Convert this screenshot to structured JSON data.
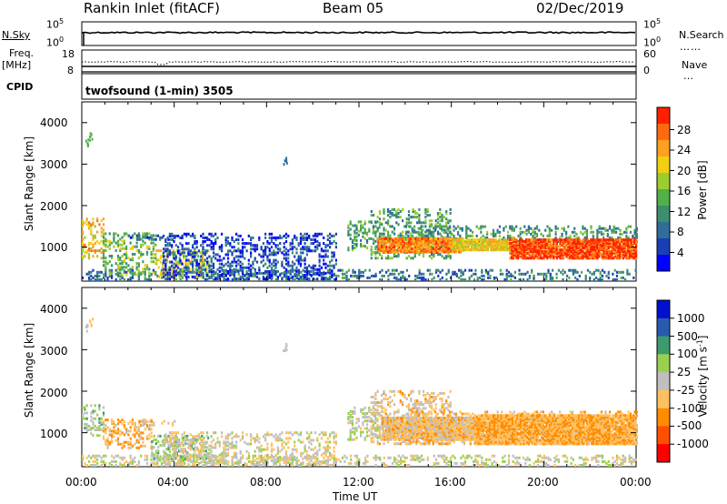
{
  "header": {
    "station": "Rankin Inlet (fitACF)",
    "beam": "Beam 05",
    "date": "02/Dec/2019"
  },
  "params": {
    "nsky_label": "N.Sky",
    "nsearch_label": "N.Search",
    "freq_label_1": "Freq.",
    "freq_label_2": "[MHz]",
    "nave_label": "Nave",
    "cpid_label": "CPID",
    "cpid_value": "twofsound (1-min) 3505",
    "nsky_ticks": [
      "10^5",
      "10^0"
    ],
    "nsearch_ticks": [
      "10^5",
      "10^0"
    ],
    "freq_ticks": [
      "18",
      "8"
    ],
    "nave_ticks": [
      "60",
      "0"
    ]
  },
  "chart_data": [
    {
      "type": "heatmap",
      "name": "power",
      "xlabel": "Time UT",
      "ylabel": "Slant Range [km]",
      "xlim": [
        0,
        24
      ],
      "ylim": [
        180,
        4500
      ],
      "yticks": [
        "4000",
        "3000",
        "2000",
        "1000"
      ],
      "colorbar": {
        "label": "Power [dB]",
        "ticks": [
          "28",
          "24",
          "20",
          "16",
          "12",
          "8",
          "4"
        ],
        "range": [
          0,
          30
        ],
        "colors": [
          "#0000ff",
          "#1a3fb4",
          "#2f6e98",
          "#3d8e6e",
          "#52b04a",
          "#9ccc2e",
          "#f0d010",
          "#ffa020",
          "#ff6a10",
          "#ff2000"
        ]
      },
      "scatter_regions": [
        {
          "t": [
            0.0,
            0.9
          ],
          "r": [
            700,
            1650
          ],
          "db": 20
        },
        {
          "t": [
            0.0,
            24.0
          ],
          "r": [
            180,
            420
          ],
          "db": 8
        },
        {
          "t": [
            0.9,
            3.2
          ],
          "r": [
            300,
            1300
          ],
          "db": 14
        },
        {
          "t": [
            3.2,
            5.5
          ],
          "r": [
            250,
            900
          ],
          "db": 18
        },
        {
          "t": [
            2.0,
            4.0
          ],
          "r": [
            1150,
            1250
          ],
          "db": 6
        },
        {
          "t": [
            3.5,
            11.0
          ],
          "r": [
            200,
            1300
          ],
          "db": 5
        },
        {
          "t": [
            11.5,
            13.0
          ],
          "r": [
            900,
            1600
          ],
          "db": 12
        },
        {
          "t": [
            12.5,
            16.0
          ],
          "r": [
            700,
            1900
          ],
          "db": 12
        },
        {
          "t": [
            14.0,
            24.0
          ],
          "r": [
            1100,
            1500
          ],
          "db": 11
        }
      ],
      "dense_regions": [
        {
          "t": [
            12.8,
            16.5
          ],
          "r": [
            850,
            1200
          ],
          "db": 24
        },
        {
          "t": [
            16.0,
            18.5
          ],
          "r": [
            900,
            1150
          ],
          "db": 20
        },
        {
          "t": [
            18.5,
            24.0
          ],
          "r": [
            700,
            1150
          ],
          "db": 27
        }
      ],
      "isolated": [
        {
          "t": 0.1,
          "r": 3450,
          "db": 14
        },
        {
          "t": 0.3,
          "r": 3600,
          "db": 14
        },
        {
          "t": 8.7,
          "r": 3000,
          "db": 6
        }
      ]
    },
    {
      "type": "heatmap",
      "name": "velocity",
      "xlabel": "Time UT",
      "ylabel": "Slant Range [km]",
      "xlim": [
        0,
        24
      ],
      "ylim": [
        180,
        4500
      ],
      "yticks": [
        "4000",
        "3000",
        "2000",
        "1000"
      ],
      "xticks": [
        "00:00",
        "04:00",
        "08:00",
        "12:00",
        "16:00",
        "20:00",
        "00:00"
      ],
      "colorbar": {
        "label": "Velocity [m s^-1]",
        "ticks": [
          "1000",
          "500",
          "100",
          "25",
          "-25",
          "-100",
          "-500",
          "-1000"
        ],
        "range": [
          -1000,
          1000
        ],
        "colors": [
          "#ff0000",
          "#ff5000",
          "#ff8c00",
          "#ffc060",
          "#bfbfbf",
          "#9ad050",
          "#3d9a6e",
          "#2a5ab0",
          "#0010d0"
        ]
      },
      "scatter_regions": [
        {
          "t": [
            0.0,
            0.9
          ],
          "r": [
            900,
            1650
          ],
          "v": 150
        },
        {
          "t": [
            0.0,
            24.0
          ],
          "r": [
            180,
            420
          ],
          "v": 30
        },
        {
          "t": [
            0.9,
            3.0
          ],
          "r": [
            600,
            1300
          ],
          "v": -300
        },
        {
          "t": [
            3.0,
            5.5
          ],
          "r": [
            300,
            900
          ],
          "v": 200
        },
        {
          "t": [
            2.0,
            4.0
          ],
          "r": [
            1150,
            1250
          ],
          "v": -150
        },
        {
          "t": [
            3.5,
            11.0
          ],
          "r": [
            200,
            1000
          ],
          "v": -50
        },
        {
          "t": [
            11.5,
            13.0
          ],
          "r": [
            800,
            1600
          ],
          "v": 80
        },
        {
          "t": [
            12.5,
            16.0
          ],
          "r": [
            700,
            2000
          ],
          "v": -150
        },
        {
          "t": [
            14.0,
            24.0
          ],
          "r": [
            700,
            1500
          ],
          "v": -250
        }
      ],
      "dense_regions": [
        {
          "t": [
            13.0,
            17.0
          ],
          "r": [
            800,
            1350
          ],
          "v": -200
        },
        {
          "t": [
            17.0,
            24.0
          ],
          "r": [
            700,
            1400
          ],
          "v": -300
        }
      ],
      "isolated": [
        {
          "t": 0.1,
          "r": 3450,
          "v": 50
        },
        {
          "t": 0.3,
          "r": 3600,
          "v": -200
        },
        {
          "t": 8.7,
          "r": 3000,
          "v": 50
        }
      ]
    }
  ]
}
